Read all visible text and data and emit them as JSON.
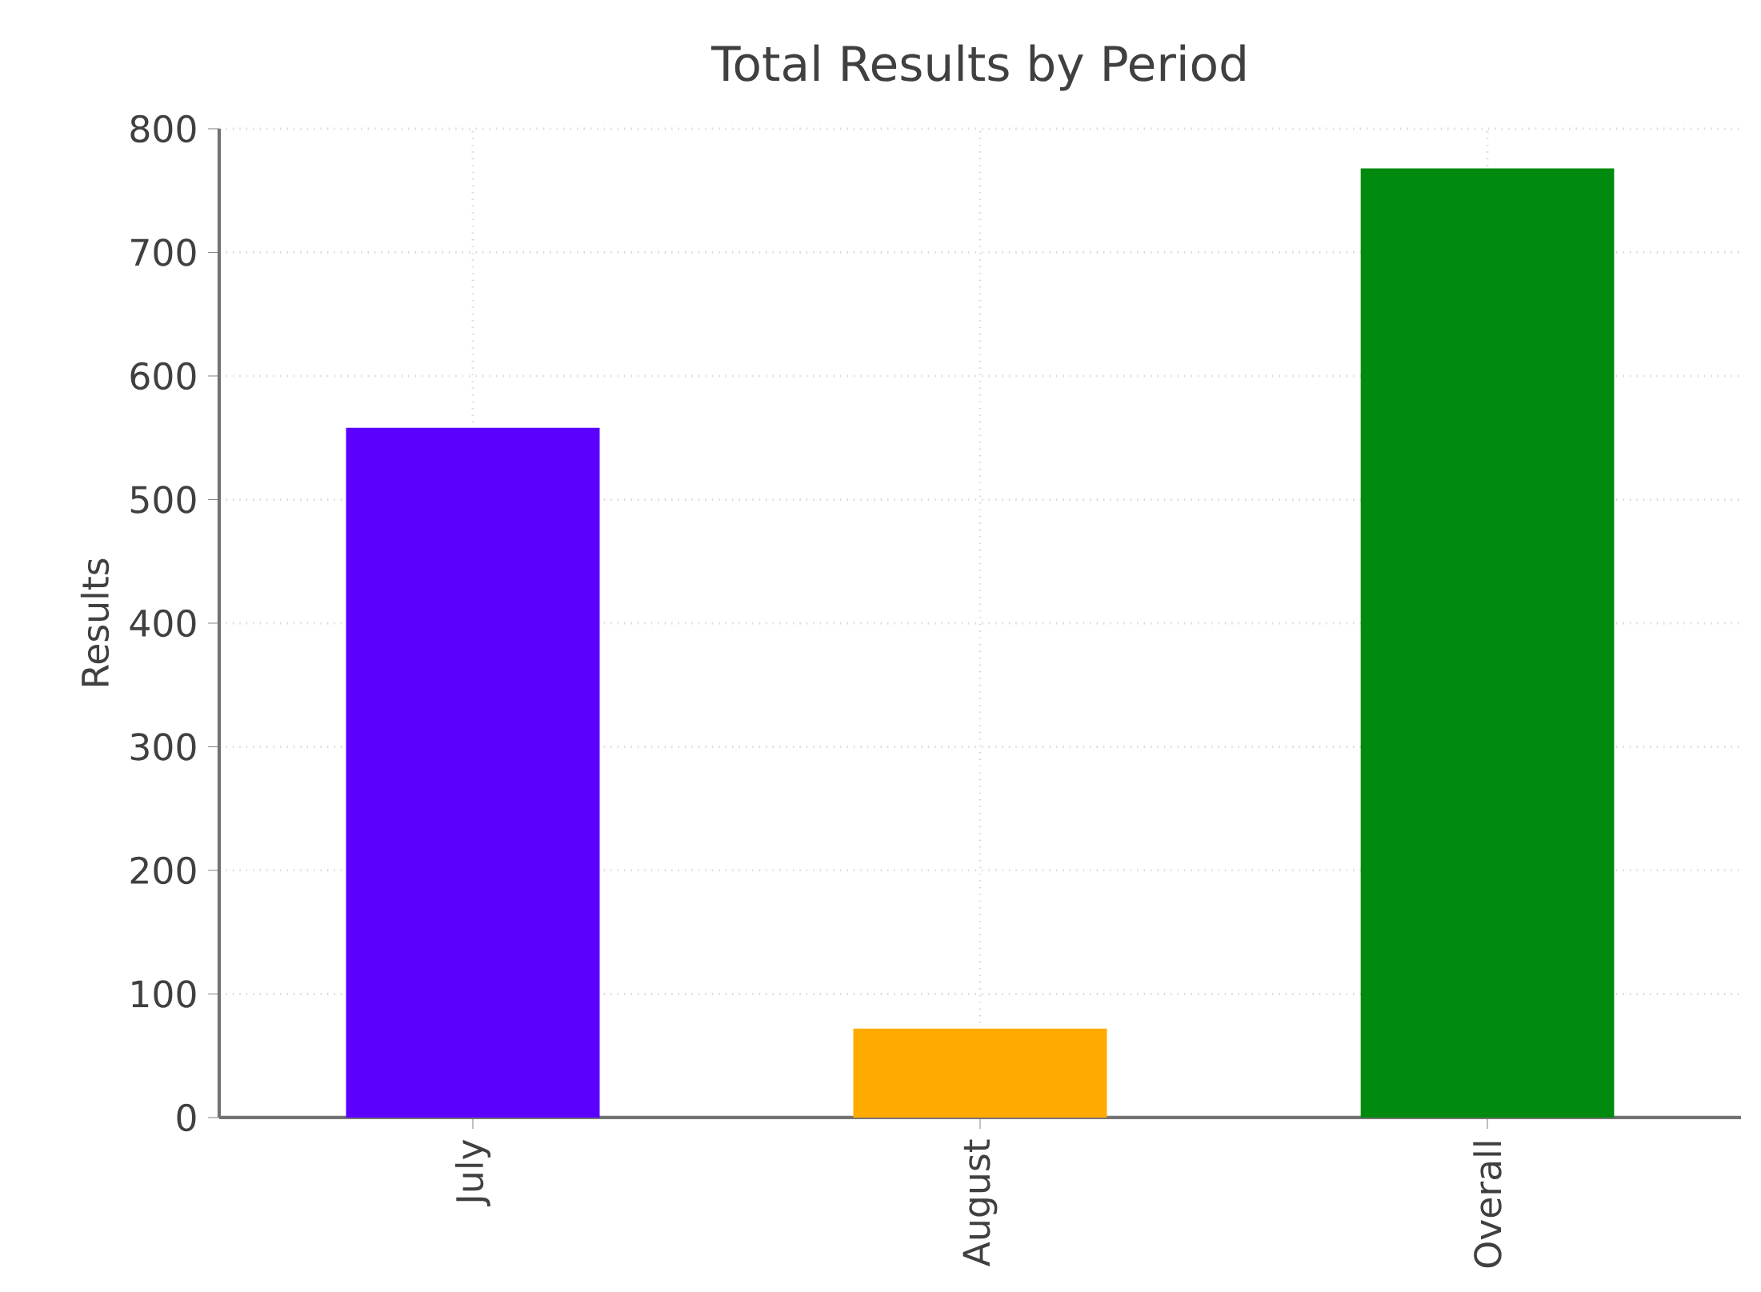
{
  "chart_data": {
    "type": "bar",
    "title": "Total Results by Period",
    "ylabel": "Results",
    "categories": [
      "July",
      "August",
      "Overall"
    ],
    "values": [
      558,
      72,
      768
    ],
    "colors": [
      "#5b00ff",
      "#ffaa00",
      "#008a0e"
    ],
    "ylim": [
      0,
      800
    ],
    "yticks": [
      0,
      100,
      200,
      300,
      400,
      500,
      600,
      700,
      800
    ],
    "grid": true
  }
}
